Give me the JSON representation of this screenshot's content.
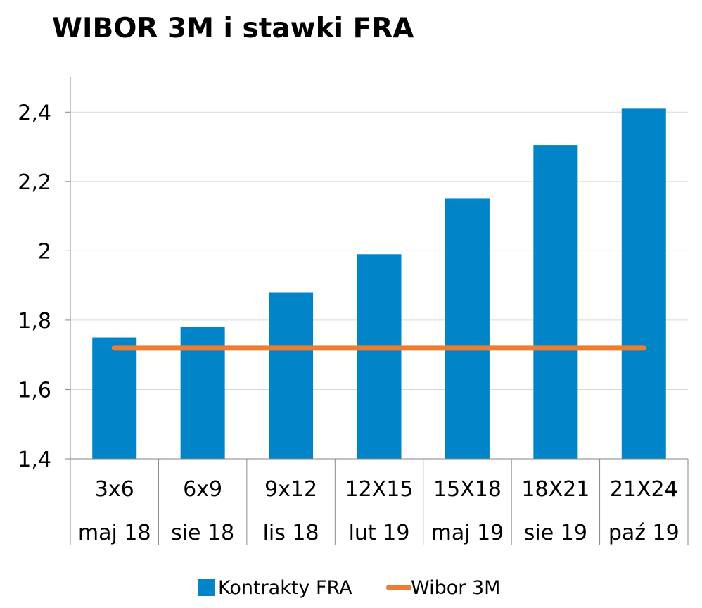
{
  "chart_data": {
    "type": "bar",
    "title": "WIBOR 3M i stawki FRA",
    "categories": [
      "3x6",
      "6x9",
      "9x12",
      "12X15",
      "15X18",
      "18X21",
      "21X24"
    ],
    "category_dates": [
      "maj 18",
      "sie 18",
      "lis 18",
      "lut 19",
      "maj 19",
      "sie 19",
      "paź 19"
    ],
    "series": [
      {
        "name": "Kontrakty FRA",
        "type": "bar",
        "color": "#0284C8",
        "values": [
          1.75,
          1.78,
          1.88,
          1.99,
          2.15,
          2.305,
          2.41
        ]
      },
      {
        "name": "Wibor 3M",
        "type": "line",
        "color": "#ED7D31",
        "values": [
          1.72,
          1.72,
          1.72,
          1.72,
          1.72,
          1.72,
          1.72
        ]
      }
    ],
    "ylim": [
      1.4,
      2.5
    ],
    "yticks": [
      1.4,
      1.6,
      1.8,
      2.0,
      2.2,
      2.4
    ],
    "ytick_labels": [
      "1,4",
      "1,6",
      "1,8",
      "2",
      "2,2",
      "2,4"
    ],
    "xlabel": "",
    "ylabel": "",
    "grid": true,
    "legend": "bottom"
  }
}
